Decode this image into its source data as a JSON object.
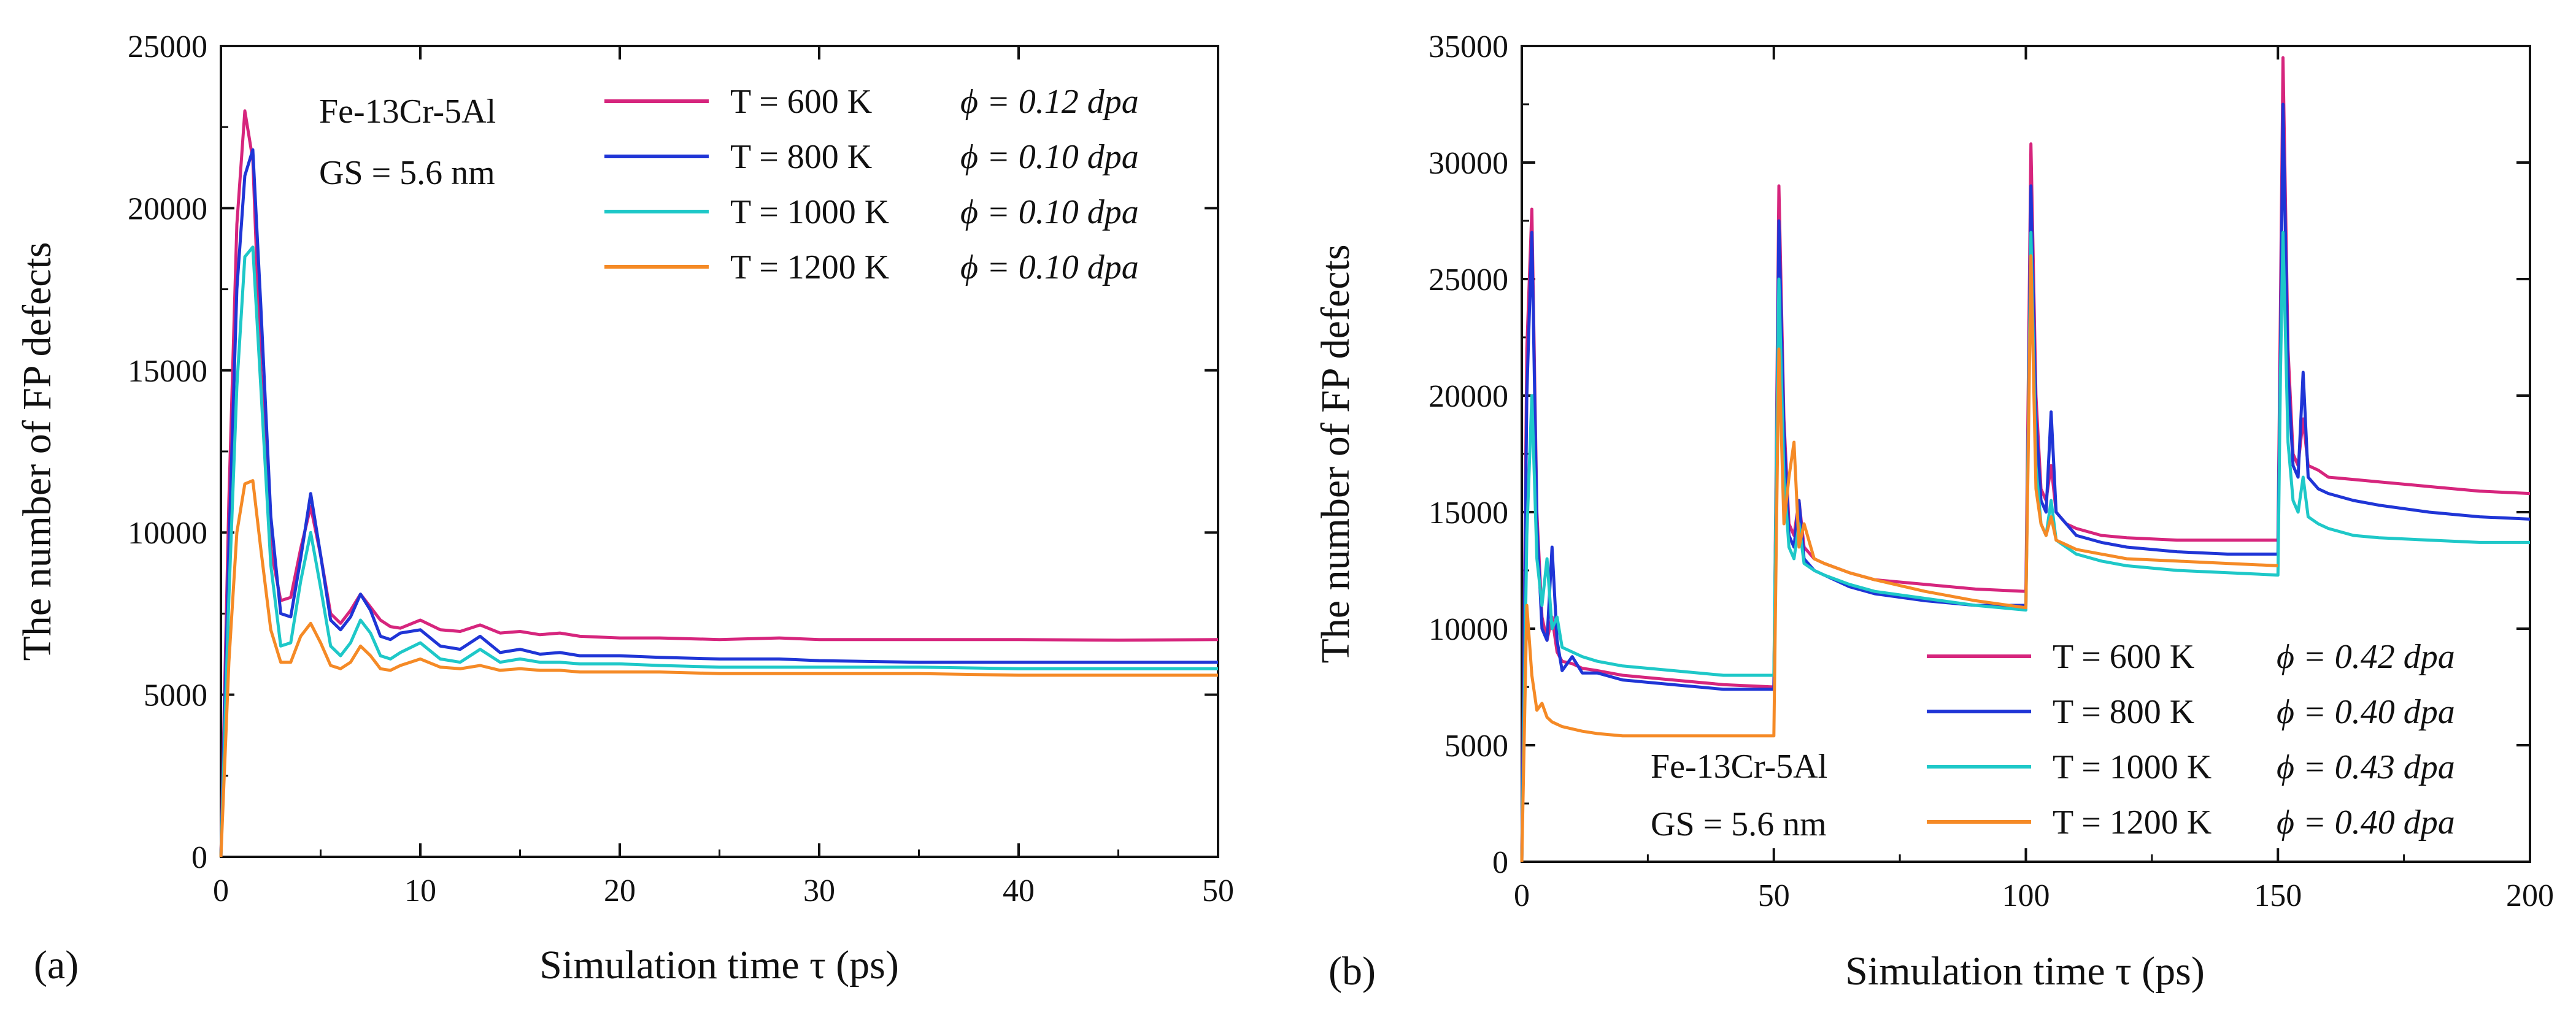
{
  "chart_data": [
    {
      "panel_label": "(a)",
      "type": "line",
      "xlabel": "Simulation time τ (ps)",
      "ylabel": "The number of  FP defects",
      "xlim": [
        0,
        50
      ],
      "ylim": [
        0,
        25000
      ],
      "xticks": [
        0,
        10,
        20,
        30,
        40,
        50
      ],
      "yticks": [
        0,
        5000,
        10000,
        15000,
        20000,
        25000
      ],
      "annotations": [
        "Fe-13Cr-5Al",
        "GS = 5.6  nm"
      ],
      "legend_position": "top-right",
      "series": [
        {
          "name": "T =  600 K",
          "phi": "ϕ = 0.12 dpa",
          "color": "#d6257d",
          "x": [
            0,
            0.4,
            0.8,
            1.2,
            1.6,
            2.0,
            2.5,
            3.0,
            3.5,
            4.0,
            4.5,
            5.0,
            5.5,
            6.0,
            6.5,
            7.0,
            7.5,
            8.0,
            8.5,
            9,
            10,
            11,
            12,
            13,
            14,
            15,
            16,
            17,
            18,
            20,
            22,
            25,
            28,
            30,
            35,
            40,
            45,
            50
          ],
          "y": [
            0,
            11000,
            19500,
            23000,
            21500,
            15000,
            9500,
            7900,
            8000,
            9500,
            10800,
            9300,
            7500,
            7200,
            7600,
            8100,
            7700,
            7300,
            7100,
            7050,
            7300,
            7000,
            6950,
            7150,
            6900,
            6950,
            6850,
            6900,
            6800,
            6750,
            6750,
            6700,
            6750,
            6700,
            6700,
            6700,
            6680,
            6700
          ]
        },
        {
          "name": "T =  800 K",
          "phi": "ϕ = 0.10 dpa",
          "color": "#1f35d6",
          "x": [
            0,
            0.4,
            0.8,
            1.2,
            1.6,
            2.0,
            2.5,
            3.0,
            3.5,
            4.0,
            4.5,
            5.0,
            5.5,
            6.0,
            6.5,
            7.0,
            7.5,
            8.0,
            8.5,
            9,
            10,
            11,
            12,
            13,
            14,
            15,
            16,
            17,
            18,
            20,
            22,
            25,
            28,
            30,
            35,
            40,
            45,
            50
          ],
          "y": [
            0,
            9500,
            17500,
            21000,
            21800,
            17000,
            10500,
            7500,
            7400,
            9200,
            11200,
            9300,
            7300,
            7000,
            7400,
            8100,
            7600,
            6800,
            6700,
            6900,
            7000,
            6500,
            6400,
            6800,
            6300,
            6400,
            6250,
            6300,
            6200,
            6200,
            6150,
            6100,
            6100,
            6050,
            6000,
            6000,
            6000,
            6000
          ]
        },
        {
          "name": "T = 1000 K",
          "phi": "ϕ = 0.10 dpa",
          "color": "#1ec8c8",
          "x": [
            0,
            0.4,
            0.8,
            1.2,
            1.6,
            2.0,
            2.5,
            3.0,
            3.5,
            4.0,
            4.5,
            5.0,
            5.5,
            6.0,
            6.5,
            7.0,
            7.5,
            8.0,
            8.5,
            9,
            10,
            11,
            12,
            13,
            14,
            15,
            16,
            17,
            18,
            20,
            22,
            25,
            28,
            30,
            35,
            40,
            45,
            50
          ],
          "y": [
            0,
            8000,
            14500,
            18500,
            18800,
            14500,
            9000,
            6500,
            6600,
            8500,
            10000,
            8300,
            6500,
            6200,
            6600,
            7300,
            6900,
            6200,
            6100,
            6300,
            6600,
            6100,
            6000,
            6400,
            6000,
            6100,
            6000,
            6000,
            5950,
            5950,
            5900,
            5850,
            5850,
            5850,
            5850,
            5800,
            5800,
            5800
          ]
        },
        {
          "name": "T = 1200 K",
          "phi": "ϕ = 0.10 dpa",
          "color": "#f58a26",
          "x": [
            0,
            0.4,
            0.8,
            1.2,
            1.6,
            2.0,
            2.5,
            3.0,
            3.5,
            4.0,
            4.5,
            5.0,
            5.5,
            6.0,
            6.5,
            7.0,
            7.5,
            8.0,
            8.5,
            9,
            10,
            11,
            12,
            13,
            14,
            15,
            16,
            17,
            18,
            20,
            22,
            25,
            28,
            30,
            35,
            40,
            45,
            50
          ],
          "y": [
            0,
            6000,
            10000,
            11500,
            11600,
            9500,
            7000,
            6000,
            6000,
            6800,
            7200,
            6600,
            5900,
            5800,
            6000,
            6500,
            6200,
            5800,
            5750,
            5900,
            6100,
            5850,
            5800,
            5900,
            5750,
            5800,
            5750,
            5750,
            5700,
            5700,
            5700,
            5650,
            5650,
            5650,
            5650,
            5600,
            5600,
            5600
          ]
        }
      ]
    },
    {
      "panel_label": "(b)",
      "type": "line",
      "xlabel": "Simulation time τ (ps)",
      "ylabel": "The number of  FP defects",
      "xlim": [
        0,
        200
      ],
      "ylim": [
        0,
        35000
      ],
      "xticks": [
        0,
        50,
        100,
        150,
        200
      ],
      "yticks": [
        0,
        5000,
        10000,
        15000,
        20000,
        25000,
        30000,
        35000
      ],
      "annotations": [
        "Fe-13Cr-5Al",
        "GS = 5.6  nm"
      ],
      "legend_position": "bottom-right",
      "series": [
        {
          "name": "T =  600 K",
          "phi": "ϕ = 0.42 dpa",
          "color": "#d6257d",
          "x": [
            0,
            1,
            2,
            3,
            4,
            5,
            6,
            7,
            8,
            10,
            12,
            15,
            20,
            30,
            40,
            50,
            50.5,
            51,
            52,
            53,
            54,
            55,
            56,
            58,
            60,
            65,
            70,
            80,
            90,
            100,
            100.5,
            101,
            102,
            103,
            104,
            105,
            106,
            108,
            110,
            115,
            120,
            130,
            140,
            150,
            150.5,
            151,
            152,
            153,
            154,
            155,
            156,
            158,
            160,
            165,
            170,
            180,
            190,
            200
          ],
          "y": [
            0,
            22000,
            28000,
            15000,
            10500,
            9500,
            10500,
            9000,
            8600,
            8500,
            8300,
            8200,
            8000,
            7800,
            7600,
            7500,
            18000,
            29000,
            19000,
            14500,
            14000,
            15500,
            13500,
            13000,
            12800,
            12400,
            12100,
            11900,
            11700,
            11600,
            21000,
            30800,
            20000,
            16000,
            15500,
            17000,
            15000,
            14500,
            14300,
            14000,
            13900,
            13800,
            13800,
            13800,
            24000,
            34500,
            22000,
            17500,
            17000,
            19000,
            17000,
            16800,
            16500,
            16400,
            16300,
            16100,
            15900,
            15800
          ]
        },
        {
          "name": "T =  800 K",
          "phi": "ϕ = 0.40 dpa",
          "color": "#1f35d6",
          "x": [
            0,
            1,
            2,
            3,
            4,
            5,
            6,
            7,
            8,
            10,
            12,
            15,
            20,
            30,
            40,
            50,
            50.5,
            51,
            52,
            53,
            54,
            55,
            56,
            58,
            60,
            65,
            70,
            80,
            90,
            100,
            100.5,
            101,
            102,
            103,
            104,
            105,
            106,
            108,
            110,
            115,
            120,
            130,
            140,
            150,
            150.5,
            151,
            152,
            153,
            154,
            155,
            156,
            158,
            160,
            165,
            170,
            180,
            190,
            200
          ],
          "y": [
            0,
            20000,
            27000,
            14500,
            10000,
            9500,
            13500,
            9500,
            8200,
            8800,
            8100,
            8100,
            7800,
            7600,
            7400,
            7400,
            17000,
            27500,
            18500,
            14000,
            13500,
            15500,
            13000,
            12500,
            12300,
            11800,
            11500,
            11200,
            11000,
            11000,
            19000,
            29000,
            19000,
            15500,
            15000,
            19300,
            15000,
            14500,
            14000,
            13700,
            13500,
            13300,
            13200,
            13200,
            22000,
            32500,
            21000,
            17000,
            16500,
            21000,
            16500,
            16000,
            15800,
            15500,
            15300,
            15000,
            14800,
            14700
          ]
        },
        {
          "name": "T = 1000 K",
          "phi": "ϕ = 0.43 dpa",
          "color": "#1ec8c8",
          "x": [
            0,
            1,
            2,
            3,
            4,
            5,
            6,
            7,
            8,
            10,
            12,
            15,
            20,
            30,
            40,
            50,
            50.5,
            51,
            52,
            53,
            54,
            55,
            56,
            58,
            60,
            65,
            70,
            80,
            90,
            100,
            100.5,
            101,
            102,
            103,
            104,
            105,
            106,
            108,
            110,
            115,
            120,
            130,
            140,
            150,
            150.5,
            151,
            152,
            153,
            154,
            155,
            156,
            158,
            160,
            165,
            170,
            180,
            190,
            200
          ],
          "y": [
            0,
            14000,
            20000,
            13000,
            11000,
            13000,
            10000,
            10500,
            9200,
            9000,
            8800,
            8600,
            8400,
            8200,
            8000,
            8000,
            17000,
            25000,
            16500,
            13500,
            13000,
            14500,
            12800,
            12500,
            12300,
            11900,
            11600,
            11300,
            11000,
            10800,
            19000,
            27000,
            17000,
            14500,
            14000,
            15500,
            13800,
            13500,
            13200,
            12900,
            12700,
            12500,
            12400,
            12300,
            21000,
            27000,
            18000,
            15500,
            15000,
            16500,
            14800,
            14500,
            14300,
            14000,
            13900,
            13800,
            13700,
            13700
          ]
        },
        {
          "name": "T = 1200 K",
          "phi": "ϕ = 0.40 dpa",
          "color": "#f58a26",
          "x": [
            0,
            1,
            2,
            3,
            4,
            5,
            6,
            7,
            8,
            10,
            12,
            15,
            20,
            30,
            40,
            50,
            50.5,
            51,
            52,
            53,
            54,
            55,
            56,
            58,
            60,
            65,
            70,
            80,
            90,
            100,
            100.5,
            101,
            102,
            103,
            104,
            105,
            106,
            108,
            110,
            115,
            120,
            130,
            140,
            150
          ],
          "y": [
            0,
            11000,
            8000,
            6500,
            6800,
            6200,
            6000,
            5900,
            5800,
            5700,
            5600,
            5500,
            5400,
            5400,
            5400,
            5400,
            14000,
            22000,
            14500,
            16500,
            18000,
            13500,
            14500,
            13000,
            12800,
            12400,
            12100,
            11600,
            11200,
            10900,
            18000,
            26000,
            16000,
            14500,
            14000,
            14800,
            13800,
            13600,
            13400,
            13200,
            13000,
            12900,
            12800,
            12700
          ]
        }
      ]
    }
  ]
}
